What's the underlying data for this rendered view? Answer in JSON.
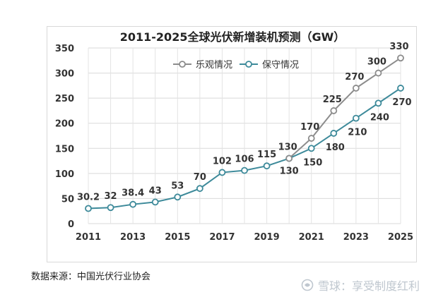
{
  "chart_data": {
    "type": "line",
    "title": "2011-2025全球光伏新增装机预测（GW）",
    "xlabel": "",
    "ylabel": "",
    "ylim": [
      0,
      350
    ],
    "yticks": [
      0,
      50,
      100,
      150,
      200,
      250,
      300,
      350
    ],
    "x": [
      2011,
      2012,
      2013,
      2014,
      2015,
      2016,
      2017,
      2018,
      2019,
      2020,
      2021,
      2022,
      2023,
      2024,
      2025
    ],
    "xtick_labels": [
      "2011",
      "2013",
      "2015",
      "2017",
      "2019",
      "2021",
      "2023",
      "2025"
    ],
    "series": [
      {
        "name": "乐观情况",
        "color": "#8c8c8c",
        "x": [
          2020,
          2021,
          2022,
          2023,
          2024,
          2025
        ],
        "values": [
          130,
          170,
          225,
          270,
          300,
          330
        ],
        "labels": [
          "",
          "170",
          "225",
          "270",
          "300",
          "330"
        ]
      },
      {
        "name": "保守情况",
        "color": "#3d8a9a",
        "x": [
          2011,
          2012,
          2013,
          2014,
          2015,
          2016,
          2017,
          2018,
          2019,
          2020,
          2021,
          2022,
          2023,
          2024,
          2025
        ],
        "values": [
          30.2,
          32,
          38.4,
          43,
          53,
          70,
          102,
          106,
          115,
          130,
          150,
          180,
          210,
          240,
          270
        ],
        "labels": [
          "30.2",
          "32",
          "38.4",
          "43",
          "53",
          "70",
          "102",
          "106",
          "115",
          "130",
          "150",
          "180",
          "210",
          "240",
          "270"
        ]
      }
    ],
    "extra_labels": [
      {
        "text": "130",
        "x": 2020,
        "value": 130,
        "series": "乐观情况"
      }
    ],
    "legend": "top-center",
    "grid": true
  },
  "source_note": "数据来源：中国光伏行业协会",
  "watermark": {
    "text": "雪球：享受制度红利",
    "icon": "snowball-logo-icon"
  }
}
